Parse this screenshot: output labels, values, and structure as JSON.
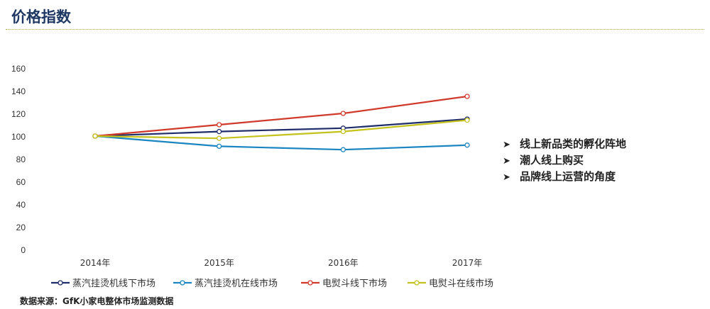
{
  "page_title": "价格指数",
  "bullets": [
    "线上新品类的孵化阵地",
    "潮人线上购买",
    "品牌线上运营的角度"
  ],
  "bullet_marker": "➤",
  "source_note": "数据来源：GfK小家电整体市场监测数据",
  "chart_data": {
    "type": "line",
    "categories": [
      "2014年",
      "2015年",
      "2016年",
      "2017年"
    ],
    "ylim": [
      0,
      160
    ],
    "yticks": [
      0,
      20,
      40,
      60,
      80,
      100,
      120,
      140,
      160
    ],
    "grid": false,
    "legend_position": "bottom",
    "series": [
      {
        "name": "蒸汽挂烫机线下市场",
        "color": "#1f2d6b",
        "values": [
          100,
          104,
          107,
          115
        ]
      },
      {
        "name": "蒸汽挂烫机在线市场",
        "color": "#1a85c0",
        "values": [
          100,
          91,
          88,
          92
        ]
      },
      {
        "name": "电熨斗线下市场",
        "color": "#d03a2b",
        "values": [
          100,
          110,
          120,
          135
        ]
      },
      {
        "name": "电熨斗在线市场",
        "color": "#c4c21c",
        "values": [
          100,
          98,
          104,
          114
        ]
      }
    ]
  }
}
